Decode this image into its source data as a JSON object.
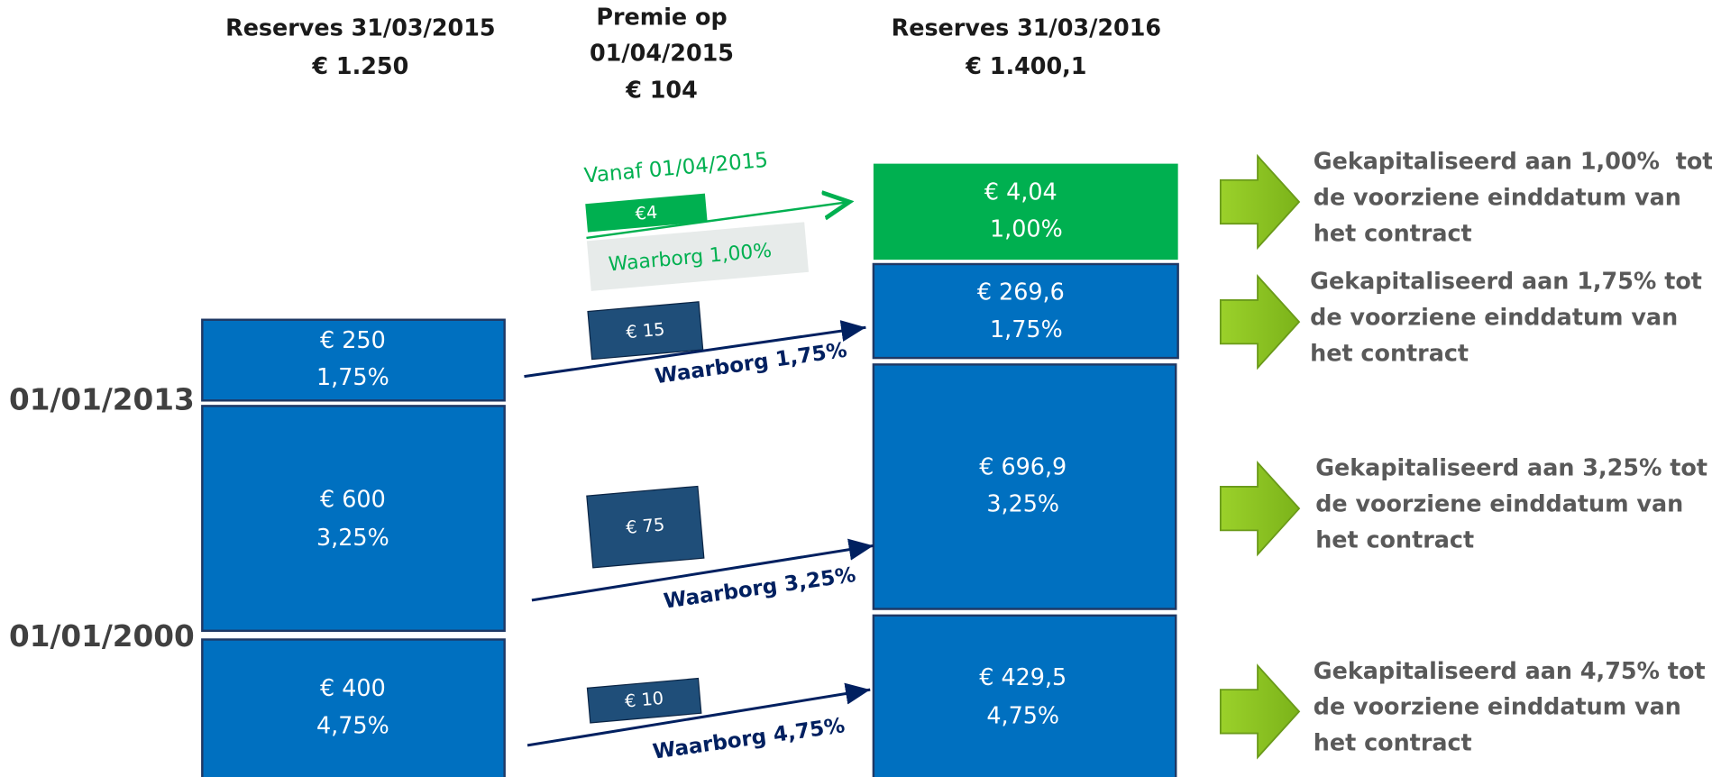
{
  "header": {
    "reserves_2015": {
      "title": "Reserves 31/03/2015",
      "amount": "€ 1.250"
    },
    "premium": {
      "title_lines": [
        "Premie op",
        "01/04/2015"
      ],
      "amount": "€ 104"
    },
    "reserves_2016": {
      "title": "Reserves 31/03/2016",
      "amount": "€ 1.400,1"
    }
  },
  "dates": [
    "01/01/2013",
    "01/01/2000"
  ],
  "left_boxes": [
    {
      "amount": "€ 250",
      "rate": "1,75%"
    },
    {
      "amount": "€ 600",
      "rate": "3,25%"
    },
    {
      "amount": "€ 400",
      "rate": "4,75%"
    }
  ],
  "premiums": {
    "since": "Vanaf 01/04/2015",
    "items": [
      {
        "amount": "€4",
        "guarantee": "Waarborg 1,00%"
      },
      {
        "amount": "€ 15",
        "guarantee": "Waarborg 1,75%"
      },
      {
        "amount": "€ 75",
        "guarantee": "Waarborg 3,25%"
      },
      {
        "amount": "€ 10",
        "guarantee": "Waarborg 4,75%"
      }
    ]
  },
  "right_boxes": [
    {
      "amount": "€ 4,04",
      "rate": "1,00%"
    },
    {
      "amount": "€ 269,6",
      "rate": "1,75%"
    },
    {
      "amount": "€ 696,9",
      "rate": "3,25%"
    },
    {
      "amount": "€ 429,5",
      "rate": "4,75%"
    }
  ],
  "notes": [
    [
      "Gekapitaliseerd aan 1,00%  tot",
      "de voorziene einddatum van",
      "het contract"
    ],
    [
      "Gekapitaliseerd aan 1,75% tot",
      "de voorziene einddatum van",
      "het contract"
    ],
    [
      "Gekapitaliseerd aan 3,25% tot",
      "de voorziene einddatum van",
      "het contract"
    ],
    [
      "Gekapitaliseerd aan 4,75% tot",
      "de voorziene einddatum van",
      "het contract"
    ]
  ]
}
